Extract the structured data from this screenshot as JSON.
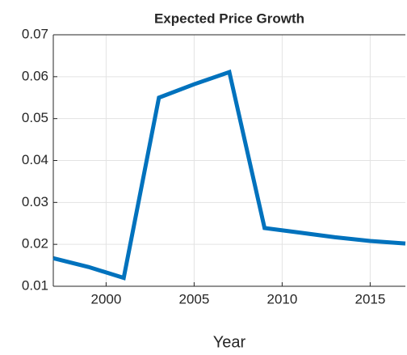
{
  "chart_data": {
    "type": "line",
    "title": "Expected Price Growth",
    "x_label": "Year",
    "x": [
      1997,
      1999,
      2001,
      2003,
      2005,
      2007,
      2009,
      2011,
      2013,
      2015,
      2017
    ],
    "series": [
      {
        "color": "#0072bd",
        "values": [
          0.0167,
          0.0146,
          0.012,
          0.055,
          0.0582,
          0.0611,
          0.0239,
          0.0228,
          0.0217,
          0.0208,
          0.0202
        ]
      }
    ],
    "xlim": [
      1997,
      2017
    ],
    "ylim": [
      0.01,
      0.07
    ],
    "xticks": [
      2000,
      2005,
      2010,
      2015
    ],
    "yticks": [
      0.01,
      0.02,
      0.03,
      0.04,
      0.05,
      0.06,
      0.07
    ],
    "grid": true
  }
}
